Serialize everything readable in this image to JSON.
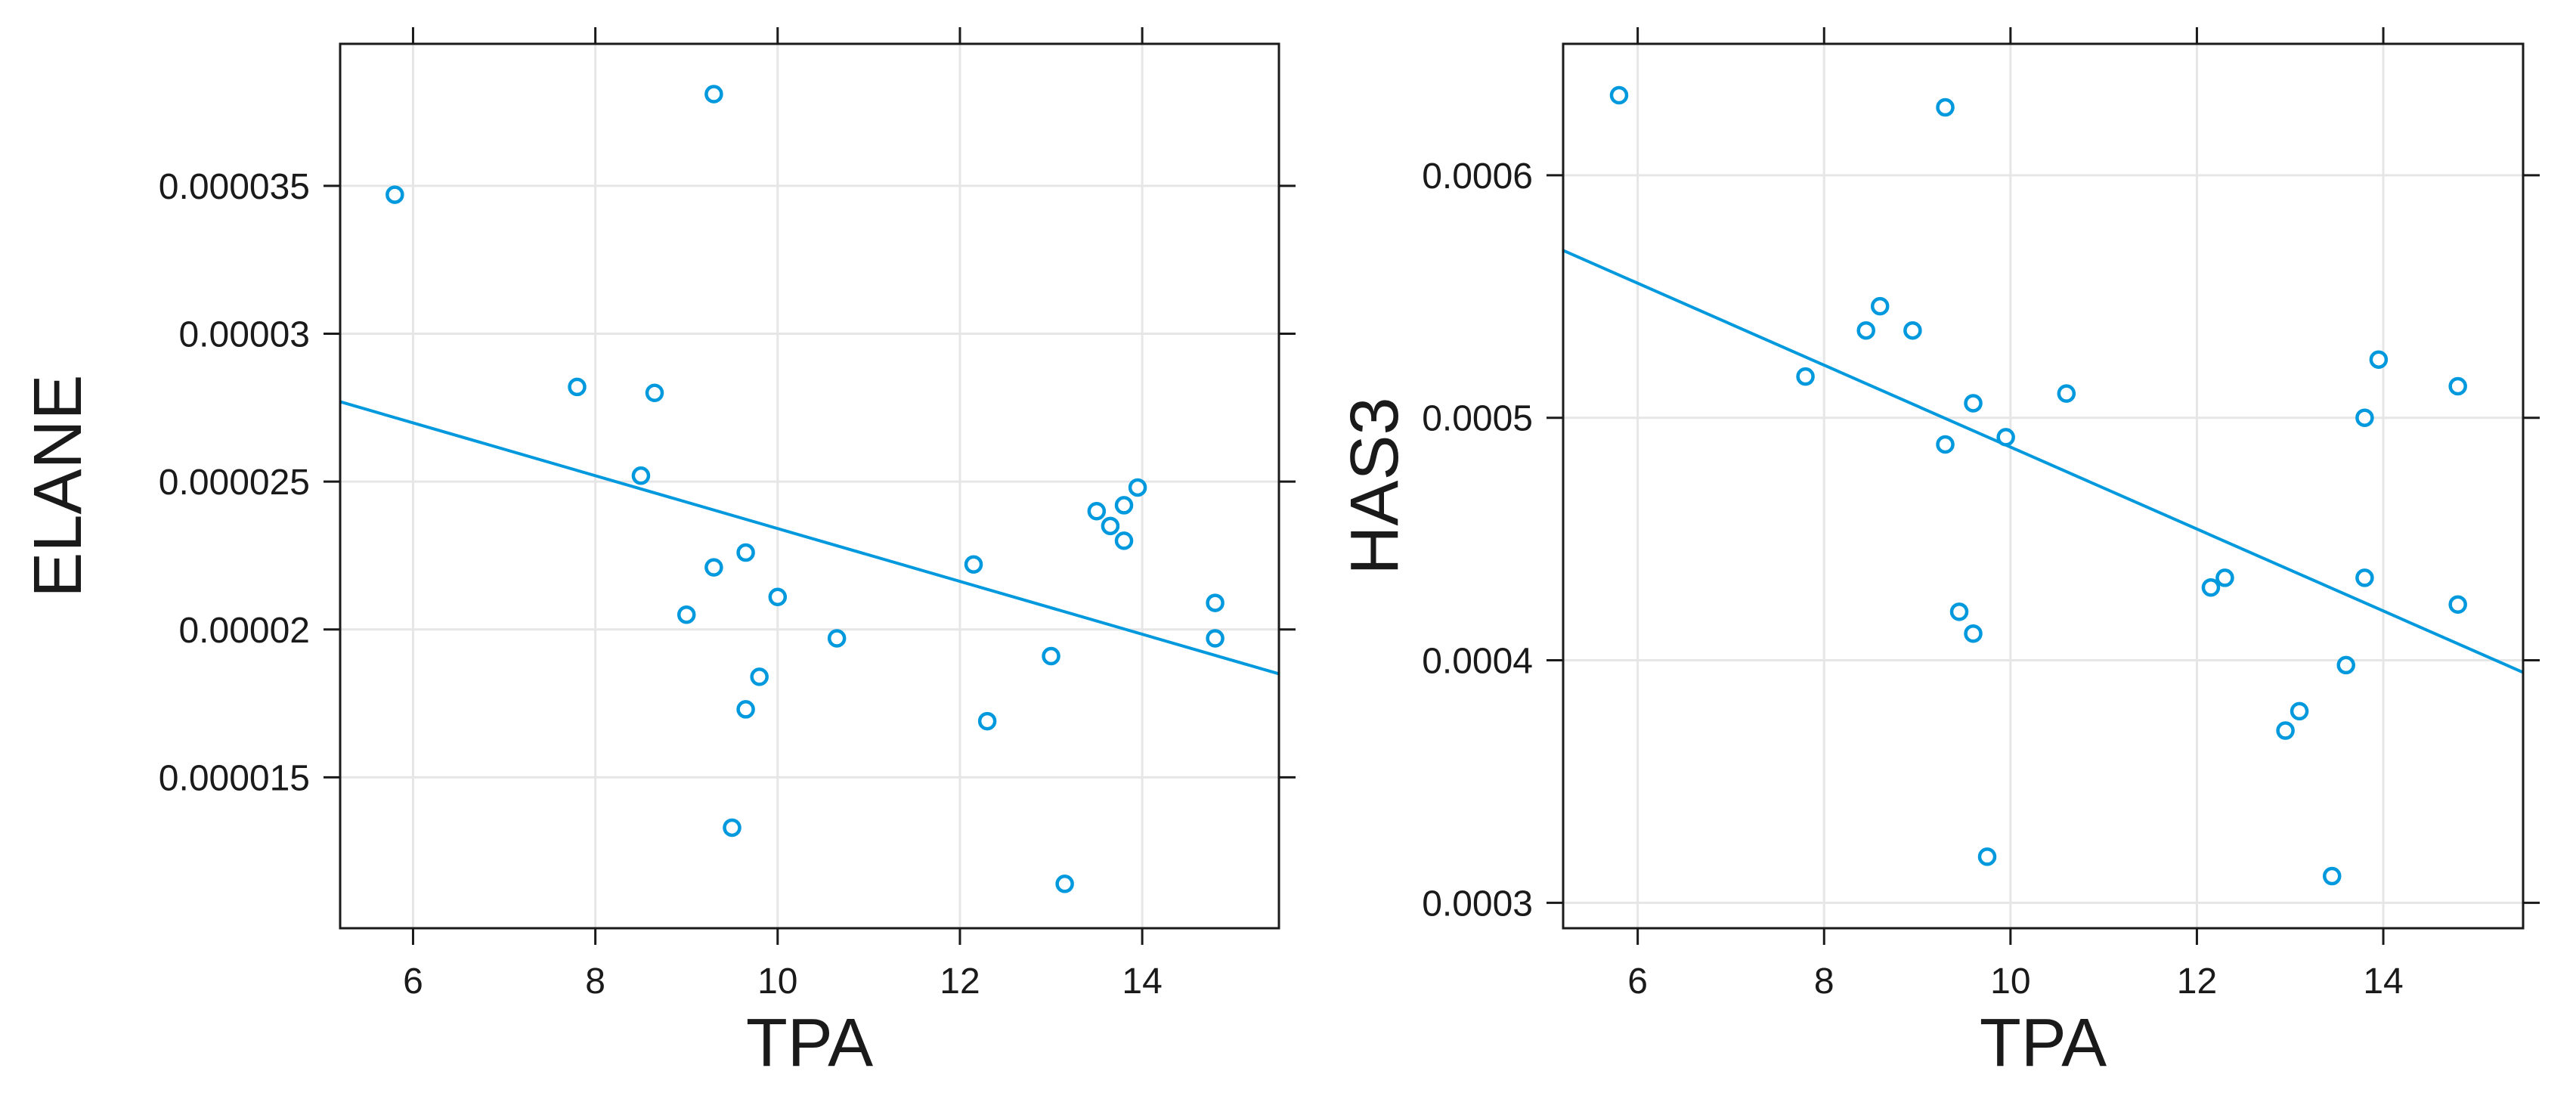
{
  "colors": {
    "series": "#0099DD",
    "frame": "#1A1A1A",
    "grid": "#E6E6E6"
  },
  "chart_data": [
    {
      "type": "scatter",
      "title": "",
      "xlabel": "TPA",
      "ylabel": "ELANE",
      "xlim": [
        5.2,
        15.5
      ],
      "ylim": [
        9.9e-06,
        3.98e-05
      ],
      "grid": true,
      "xticks": [
        6,
        8,
        10,
        12,
        14
      ],
      "xtick_labels": [
        "6",
        "8",
        "10",
        "12",
        "14"
      ],
      "yticks": [
        1.5e-05,
        2e-05,
        2.5e-05,
        3e-05,
        3.5e-05
      ],
      "ytick_labels": [
        "0.000015",
        "0.00002",
        "0.000025",
        "0.00003",
        "0.000035"
      ],
      "points": [
        {
          "x": 5.8,
          "y": 3.47e-05
        },
        {
          "x": 7.8,
          "y": 2.82e-05
        },
        {
          "x": 8.5,
          "y": 2.52e-05
        },
        {
          "x": 8.65,
          "y": 2.8e-05
        },
        {
          "x": 9.0,
          "y": 2.05e-05
        },
        {
          "x": 9.3,
          "y": 3.81e-05
        },
        {
          "x": 9.3,
          "y": 2.21e-05
        },
        {
          "x": 9.5,
          "y": 1.33e-05
        },
        {
          "x": 9.65,
          "y": 2.26e-05
        },
        {
          "x": 9.65,
          "y": 1.73e-05
        },
        {
          "x": 9.8,
          "y": 1.84e-05
        },
        {
          "x": 10.0,
          "y": 2.11e-05
        },
        {
          "x": 10.65,
          "y": 1.97e-05
        },
        {
          "x": 12.15,
          "y": 2.22e-05
        },
        {
          "x": 12.3,
          "y": 1.69e-05
        },
        {
          "x": 13.0,
          "y": 1.91e-05
        },
        {
          "x": 13.15,
          "y": 1.14e-05
        },
        {
          "x": 13.5,
          "y": 2.4e-05
        },
        {
          "x": 13.65,
          "y": 2.35e-05
        },
        {
          "x": 13.8,
          "y": 2.42e-05
        },
        {
          "x": 13.8,
          "y": 2.3e-05
        },
        {
          "x": 13.95,
          "y": 2.48e-05
        },
        {
          "x": 14.8,
          "y": 2.09e-05
        },
        {
          "x": 14.8,
          "y": 1.97e-05
        }
      ],
      "fit_line": {
        "x": [
          5.2,
          15.5
        ],
        "y": [
          2.77e-05,
          1.85e-05
        ]
      }
    },
    {
      "type": "scatter",
      "title": "",
      "xlabel": "TPA",
      "ylabel": "HAS3",
      "xlim": [
        5.2,
        15.5
      ],
      "ylim": [
        0.0002895,
        0.0006542
      ],
      "grid": true,
      "xticks": [
        6,
        8,
        10,
        12,
        14
      ],
      "xtick_labels": [
        "6",
        "8",
        "10",
        "12",
        "14"
      ],
      "yticks": [
        0.0003,
        0.0004,
        0.0005,
        0.0006
      ],
      "ytick_labels": [
        "0.0003",
        "0.0004",
        "0.0005",
        "0.0006"
      ],
      "points": [
        {
          "x": 5.8,
          "y": 0.000633
        },
        {
          "x": 7.8,
          "y": 0.000517
        },
        {
          "x": 8.45,
          "y": 0.000536
        },
        {
          "x": 8.6,
          "y": 0.000546
        },
        {
          "x": 8.95,
          "y": 0.000536
        },
        {
          "x": 9.3,
          "y": 0.000628
        },
        {
          "x": 9.3,
          "y": 0.000489
        },
        {
          "x": 9.45,
          "y": 0.00042
        },
        {
          "x": 9.6,
          "y": 0.000506
        },
        {
          "x": 9.6,
          "y": 0.000411
        },
        {
          "x": 9.75,
          "y": 0.000319
        },
        {
          "x": 9.95,
          "y": 0.000492
        },
        {
          "x": 10.6,
          "y": 0.00051
        },
        {
          "x": 12.15,
          "y": 0.00043
        },
        {
          "x": 12.3,
          "y": 0.000434
        },
        {
          "x": 12.95,
          "y": 0.000371
        },
        {
          "x": 13.1,
          "y": 0.000379
        },
        {
          "x": 13.45,
          "y": 0.000311
        },
        {
          "x": 13.6,
          "y": 0.000398
        },
        {
          "x": 13.8,
          "y": 0.0005
        },
        {
          "x": 13.8,
          "y": 0.000434
        },
        {
          "x": 13.95,
          "y": 0.000524
        },
        {
          "x": 14.8,
          "y": 0.000513
        },
        {
          "x": 14.8,
          "y": 0.000423
        }
      ],
      "fit_line": {
        "x": [
          5.2,
          15.5
        ],
        "y": [
          0.000569,
          0.000395
        ]
      }
    }
  ]
}
